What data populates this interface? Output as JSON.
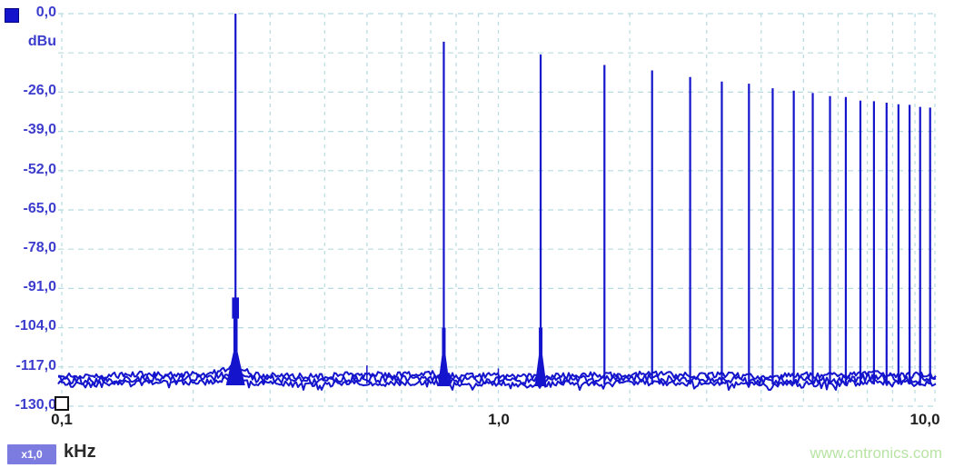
{
  "colors": {
    "trace": "#1414cc",
    "grid": "#b7dbdf",
    "axis_labels_blue": "#3c3ccd",
    "x_labels_dark": "#1f1f1f",
    "multiplier_badge": "#7b7be0",
    "watermark_green": "#b8e4a4"
  },
  "chart": {
    "y_labels": [
      "0,0",
      "dBu",
      "-26,0",
      "-39,0",
      "-52,0",
      "-65,0",
      "-78,0",
      "-91,0",
      "-104,0",
      "-117,0",
      "-130,0"
    ],
    "x_labels": [
      "0,1",
      "1,0",
      "10,0"
    ],
    "x_unit": "kHz",
    "x_multiplier": "x1,0"
  },
  "watermark": {
    "text": "www.cntronics.com"
  },
  "chart_data": {
    "type": "line",
    "subtype": "audio-spectrum-fft",
    "y_unit": "dBu",
    "x_unit": "kHz",
    "x_scale": "log",
    "x_range": [
      0.1,
      10.0
    ],
    "y_range": [
      -130.0,
      0.0
    ],
    "y_tick_step": 13.0,
    "y_tick_values": [
      0,
      -13,
      -26,
      -39,
      -52,
      -65,
      -78,
      -91,
      -104,
      -117,
      -130
    ],
    "x_gridlines_khz": [
      0.1,
      0.2,
      0.3,
      0.4,
      0.5,
      0.6,
      0.7,
      0.8,
      0.9,
      1,
      2,
      3,
      4,
      5,
      6,
      7,
      8,
      9,
      10
    ],
    "grid_style": "dashed",
    "legend_position": "top-left",
    "noise_floor_dbu": -121,
    "noise_ripple_db": 2.5,
    "fundamental_khz": 0.25,
    "peaks": [
      {
        "harmonic": 1,
        "khz": 0.25,
        "dbu": 0.0
      },
      {
        "harmonic": 2,
        "khz": 0.5,
        "dbu": -116.5
      },
      {
        "harmonic": 3,
        "khz": 0.75,
        "dbu": -9.3
      },
      {
        "harmonic": 4,
        "khz": 1.0,
        "dbu": -117.5
      },
      {
        "harmonic": 5,
        "khz": 1.25,
        "dbu": -13.5
      },
      {
        "harmonic": 7,
        "khz": 1.75,
        "dbu": -17.0
      },
      {
        "harmonic": 9,
        "khz": 2.25,
        "dbu": -18.8
      },
      {
        "harmonic": 11,
        "khz": 2.75,
        "dbu": -21.0
      },
      {
        "harmonic": 13,
        "khz": 3.25,
        "dbu": -22.5
      },
      {
        "harmonic": 15,
        "khz": 3.75,
        "dbu": -23.2
      },
      {
        "harmonic": 17,
        "khz": 4.25,
        "dbu": -24.7
      },
      {
        "harmonic": 19,
        "khz": 4.75,
        "dbu": -25.5
      },
      {
        "harmonic": 21,
        "khz": 5.25,
        "dbu": -26.3
      },
      {
        "harmonic": 23,
        "khz": 5.75,
        "dbu": -27.3
      },
      {
        "harmonic": 25,
        "khz": 6.25,
        "dbu": -27.6
      },
      {
        "harmonic": 27,
        "khz": 6.75,
        "dbu": -28.8
      },
      {
        "harmonic": 29,
        "khz": 7.25,
        "dbu": -29.0
      },
      {
        "harmonic": 31,
        "khz": 7.75,
        "dbu": -29.5
      },
      {
        "harmonic": 33,
        "khz": 8.25,
        "dbu": -30.0
      },
      {
        "harmonic": 35,
        "khz": 8.75,
        "dbu": -30.2
      },
      {
        "harmonic": 37,
        "khz": 9.25,
        "dbu": -30.9
      },
      {
        "harmonic": 39,
        "khz": 9.75,
        "dbu": -31.1
      }
    ]
  }
}
